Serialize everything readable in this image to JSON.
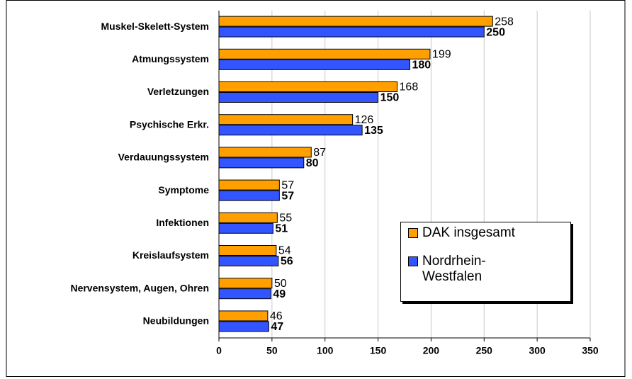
{
  "chart_data": {
    "type": "barh",
    "categories": [
      "Muskel-Skelett-System",
      "Atmungssystem",
      "Verletzungen",
      "Psychische Erkr.",
      "Verdauungssystem",
      "Symptome",
      "Infektionen",
      "Kreislaufsystem",
      "Nervensystem, Augen, Ohren",
      "Neubildungen"
    ],
    "series": [
      {
        "name": "DAK insgesamt",
        "color": "#ff9f00",
        "values": [
          258,
          199,
          168,
          126,
          87,
          57,
          55,
          54,
          50,
          46
        ]
      },
      {
        "name": "Nordrhein-Westfalen",
        "color": "#3355ff",
        "values": [
          250,
          180,
          150,
          135,
          80,
          57,
          51,
          56,
          49,
          47
        ]
      }
    ],
    "xlim": [
      0,
      350
    ],
    "xticks": [
      0,
      50,
      100,
      150,
      200,
      250,
      300,
      350
    ],
    "grid": true,
    "legend_position": "lower right"
  }
}
